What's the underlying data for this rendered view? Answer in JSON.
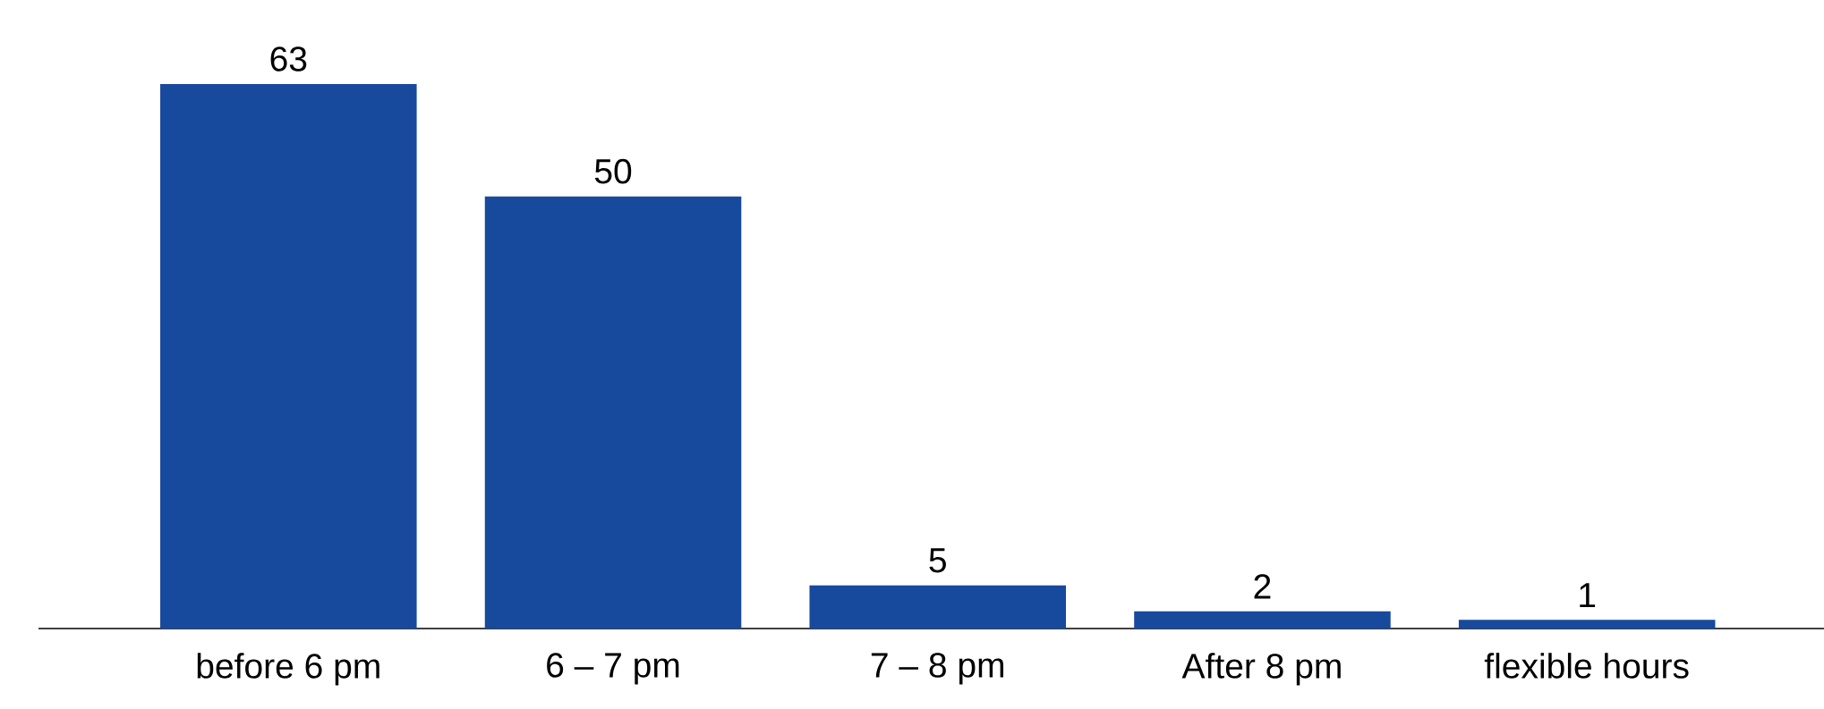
{
  "chart_data": {
    "type": "bar",
    "categories": [
      "before 6 pm",
      "6 – 7 pm",
      "7 – 8 pm",
      "After 8 pm",
      "flexible hours"
    ],
    "values": [
      63,
      50,
      5,
      2,
      1
    ],
    "color": "#174a9c",
    "data_labels": true
  }
}
